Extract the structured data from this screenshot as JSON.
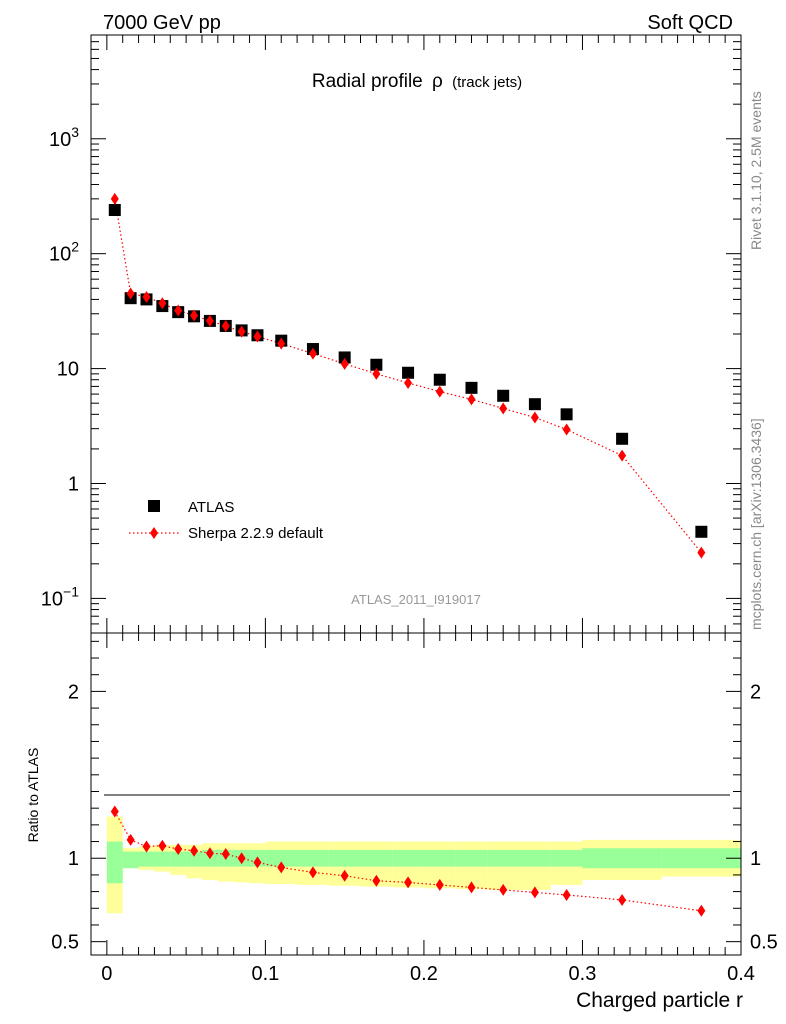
{
  "header": {
    "left": "7000 GeV pp",
    "right": "Soft QCD"
  },
  "side_labels": {
    "rivet": "Rivet 3.1.10,  2.5M events",
    "mcplots": "mcplots.cern.ch [arXiv:1306.3436]"
  },
  "analysis_id": "ATLAS_2011_I919017",
  "chart_data": [
    {
      "type": "scatter",
      "title": "Radial profile",
      "title_symbol": "ρ",
      "subtitle": "(track jets)",
      "yscale": "log",
      "xlim": [
        -0.01,
        0.4
      ],
      "ylim": [
        0.05,
        8000
      ],
      "y_ticks": [
        {
          "v": 0.1,
          "m": "10",
          "e": "−1"
        },
        {
          "v": 1,
          "m": "1",
          "e": ""
        },
        {
          "v": 10,
          "m": "10",
          "e": ""
        },
        {
          "v": 100,
          "m": "10",
          "e": "2"
        },
        {
          "v": 1000,
          "m": "10",
          "e": "3"
        }
      ],
      "legend_position": "bottom-left",
      "series": [
        {
          "name": "ATLAS",
          "marker": "square",
          "color": "#000000",
          "x": [
            0.005,
            0.015,
            0.025,
            0.035,
            0.045,
            0.055,
            0.065,
            0.075,
            0.085,
            0.095,
            0.11,
            0.13,
            0.15,
            0.17,
            0.19,
            0.21,
            0.23,
            0.25,
            0.27,
            0.29,
            0.325,
            0.375
          ],
          "y": [
            240,
            41,
            40,
            35,
            31,
            28.5,
            26,
            23.5,
            21.5,
            19.5,
            17.5,
            14.8,
            12.5,
            10.8,
            9.2,
            8.0,
            6.8,
            5.8,
            4.9,
            4.0,
            2.45,
            0.38
          ]
        },
        {
          "name": "Sherpa 2.2.9 default",
          "marker": "diamond",
          "line": "dotted",
          "color": "#ff0000",
          "x": [
            0.005,
            0.015,
            0.025,
            0.035,
            0.045,
            0.055,
            0.065,
            0.075,
            0.085,
            0.095,
            0.11,
            0.13,
            0.15,
            0.17,
            0.19,
            0.21,
            0.23,
            0.25,
            0.27,
            0.29,
            0.325,
            0.375
          ],
          "y": [
            300,
            45,
            42,
            37,
            32,
            29,
            26,
            23.5,
            21,
            19,
            16.5,
            13.5,
            11,
            9.0,
            7.5,
            6.3,
            5.4,
            4.5,
            3.75,
            2.95,
            1.75,
            0.25
          ]
        }
      ]
    },
    {
      "type": "scatter",
      "ylabel": "Ratio to ATLAS",
      "xlabel": "Charged particle r",
      "xlim": [
        -0.01,
        0.4
      ],
      "ylim": [
        0.42,
        2.35
      ],
      "x_ticks": [
        "0",
        "0.1",
        "0.2",
        "0.3",
        "0.4"
      ],
      "x_tick_values": [
        0,
        0.1,
        0.2,
        0.3,
        0.4
      ],
      "y_ticks": [
        "0.5",
        "1",
        "2"
      ],
      "y_tick_values": [
        0.5,
        1,
        2
      ],
      "bands": {
        "bins": [
          0,
          0.01,
          0.02,
          0.03,
          0.04,
          0.05,
          0.06,
          0.07,
          0.08,
          0.09,
          0.1,
          0.12,
          0.14,
          0.16,
          0.18,
          0.2,
          0.22,
          0.24,
          0.26,
          0.28,
          0.3,
          0.35,
          0.4
        ],
        "inner_color": "#99ff99",
        "outer_color": "#ffff99",
        "inner_lo": [
          0.85,
          0.94,
          0.95,
          0.95,
          0.95,
          0.95,
          0.95,
          0.95,
          0.95,
          0.95,
          0.95,
          0.95,
          0.95,
          0.95,
          0.95,
          0.95,
          0.95,
          0.95,
          0.95,
          0.95,
          0.94,
          0.94
        ],
        "inner_hi": [
          1.1,
          1.04,
          1.04,
          1.04,
          1.04,
          1.04,
          1.05,
          1.05,
          1.05,
          1.05,
          1.05,
          1.05,
          1.05,
          1.05,
          1.05,
          1.05,
          1.05,
          1.05,
          1.05,
          1.05,
          1.06,
          1.06
        ],
        "outer_lo": [
          0.67,
          0.96,
          0.93,
          0.92,
          0.9,
          0.88,
          0.87,
          0.86,
          0.855,
          0.85,
          0.845,
          0.84,
          0.835,
          0.83,
          0.825,
          0.82,
          0.815,
          0.81,
          0.81,
          0.84,
          0.87,
          0.89
        ],
        "outer_hi": [
          1.25,
          1.06,
          1.07,
          1.08,
          1.08,
          1.08,
          1.09,
          1.09,
          1.09,
          1.09,
          1.1,
          1.1,
          1.1,
          1.1,
          1.1,
          1.1,
          1.1,
          1.1,
          1.1,
          1.1,
          1.11,
          1.11
        ]
      },
      "series": [
        {
          "name": "Sherpa 2.2.9 default",
          "marker": "diamond",
          "line": "dotted",
          "color": "#ff0000",
          "x": [
            0.005,
            0.015,
            0.025,
            0.035,
            0.045,
            0.055,
            0.065,
            0.075,
            0.085,
            0.095,
            0.11,
            0.13,
            0.15,
            0.17,
            0.19,
            0.21,
            0.23,
            0.25,
            0.27,
            0.29,
            0.325,
            0.375
          ],
          "y": [
            1.28,
            1.11,
            1.07,
            1.075,
            1.055,
            1.045,
            1.03,
            1.025,
            1.0,
            0.975,
            0.945,
            0.915,
            0.895,
            0.865,
            0.855,
            0.84,
            0.825,
            0.81,
            0.795,
            0.78,
            0.75,
            0.685
          ]
        }
      ]
    }
  ]
}
